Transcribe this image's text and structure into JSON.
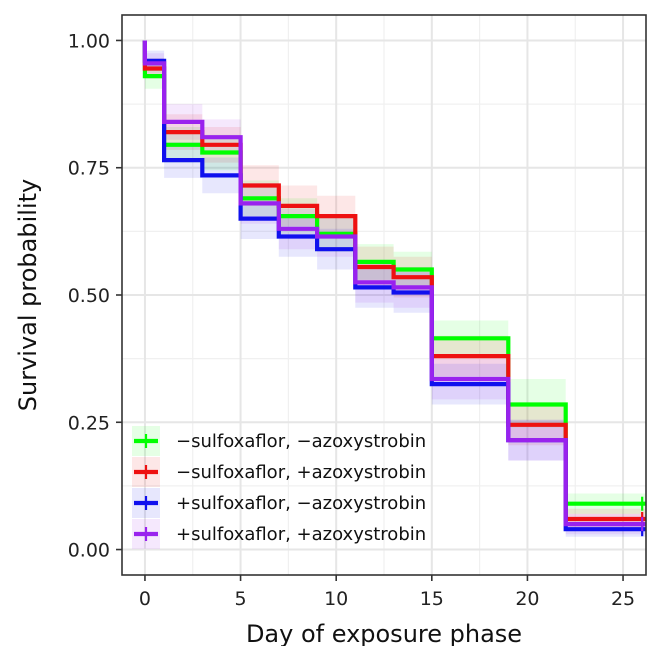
{
  "chart_data": {
    "type": "line",
    "title": "",
    "xlabel": "Day of exposure phase",
    "ylabel": "Survival probability",
    "xlim": [
      -1.2,
      26.2
    ],
    "ylim": [
      -0.05,
      1.05
    ],
    "xticks": [
      0,
      5,
      10,
      15,
      20,
      25
    ],
    "xtick_labels": [
      "0",
      "5",
      "10",
      "15",
      "20",
      "25"
    ],
    "yticks": [
      0,
      0.25,
      0.5,
      0.75,
      1.0
    ],
    "ytick_labels": [
      "0.00",
      "0.25",
      "0.50",
      "0.75",
      "1.00"
    ],
    "grid": true,
    "legend_position": "bottom-left",
    "step": true,
    "series": [
      {
        "name": "−sulfoxaflor, −azoxystrobin",
        "color": "#00ff00",
        "points": [
          [
            0,
            1.0
          ],
          [
            0,
            0.93
          ],
          [
            1,
            0.93
          ],
          [
            1,
            0.795
          ],
          [
            3,
            0.795
          ],
          [
            3,
            0.78
          ],
          [
            5,
            0.78
          ],
          [
            5,
            0.69
          ],
          [
            7,
            0.69
          ],
          [
            7,
            0.655
          ],
          [
            9,
            0.655
          ],
          [
            9,
            0.62
          ],
          [
            11,
            0.62
          ],
          [
            11,
            0.565
          ],
          [
            13,
            0.565
          ],
          [
            13,
            0.55
          ],
          [
            15,
            0.55
          ],
          [
            15,
            0.415
          ],
          [
            19,
            0.415
          ],
          [
            19,
            0.285
          ],
          [
            22,
            0.285
          ],
          [
            22,
            0.09
          ],
          [
            26.2,
            0.09
          ]
        ],
        "ci_upper": [
          [
            0,
            1.0
          ],
          [
            0,
            0.955
          ],
          [
            1,
            0.955
          ],
          [
            1,
            0.83
          ],
          [
            3,
            0.83
          ],
          [
            3,
            0.815
          ],
          [
            5,
            0.815
          ],
          [
            5,
            0.725
          ],
          [
            7,
            0.725
          ],
          [
            7,
            0.69
          ],
          [
            9,
            0.69
          ],
          [
            9,
            0.655
          ],
          [
            11,
            0.655
          ],
          [
            11,
            0.6
          ],
          [
            13,
            0.6
          ],
          [
            13,
            0.585
          ],
          [
            15,
            0.585
          ],
          [
            15,
            0.45
          ],
          [
            19,
            0.45
          ],
          [
            19,
            0.335
          ],
          [
            22,
            0.335
          ],
          [
            22,
            0.11
          ],
          [
            26.2,
            0.11
          ]
        ],
        "ci_lower": [
          [
            0,
            1.0
          ],
          [
            0,
            0.905
          ],
          [
            1,
            0.905
          ],
          [
            1,
            0.76
          ],
          [
            3,
            0.76
          ],
          [
            3,
            0.745
          ],
          [
            5,
            0.745
          ],
          [
            5,
            0.655
          ],
          [
            7,
            0.655
          ],
          [
            7,
            0.62
          ],
          [
            9,
            0.62
          ],
          [
            9,
            0.585
          ],
          [
            11,
            0.585
          ],
          [
            11,
            0.53
          ],
          [
            13,
            0.53
          ],
          [
            13,
            0.515
          ],
          [
            15,
            0.515
          ],
          [
            15,
            0.38
          ],
          [
            19,
            0.38
          ],
          [
            19,
            0.24
          ],
          [
            22,
            0.24
          ],
          [
            22,
            0.07
          ],
          [
            26.2,
            0.07
          ]
        ],
        "censor_x": 26
      },
      {
        "name": "−sulfoxaflor, +azoxystrobin",
        "color": "#ee1111",
        "points": [
          [
            0,
            1.0
          ],
          [
            0,
            0.945
          ],
          [
            1,
            0.945
          ],
          [
            1,
            0.82
          ],
          [
            3,
            0.82
          ],
          [
            3,
            0.795
          ],
          [
            5,
            0.795
          ],
          [
            5,
            0.715
          ],
          [
            7,
            0.715
          ],
          [
            7,
            0.675
          ],
          [
            9,
            0.675
          ],
          [
            9,
            0.655
          ],
          [
            11,
            0.655
          ],
          [
            11,
            0.555
          ],
          [
            13,
            0.555
          ],
          [
            13,
            0.535
          ],
          [
            15,
            0.535
          ],
          [
            15,
            0.38
          ],
          [
            19,
            0.38
          ],
          [
            19,
            0.245
          ],
          [
            22,
            0.245
          ],
          [
            22,
            0.06
          ],
          [
            26.2,
            0.06
          ]
        ],
        "ci_upper": [
          [
            0,
            1.0
          ],
          [
            0,
            0.965
          ],
          [
            1,
            0.965
          ],
          [
            1,
            0.855
          ],
          [
            3,
            0.855
          ],
          [
            3,
            0.83
          ],
          [
            5,
            0.83
          ],
          [
            5,
            0.755
          ],
          [
            7,
            0.755
          ],
          [
            7,
            0.715
          ],
          [
            9,
            0.715
          ],
          [
            9,
            0.695
          ],
          [
            11,
            0.695
          ],
          [
            11,
            0.595
          ],
          [
            13,
            0.595
          ],
          [
            13,
            0.575
          ],
          [
            15,
            0.575
          ],
          [
            15,
            0.42
          ],
          [
            19,
            0.42
          ],
          [
            19,
            0.285
          ],
          [
            22,
            0.285
          ],
          [
            22,
            0.08
          ],
          [
            26.2,
            0.08
          ]
        ],
        "ci_lower": [
          [
            0,
            1.0
          ],
          [
            0,
            0.925
          ],
          [
            1,
            0.925
          ],
          [
            1,
            0.785
          ],
          [
            3,
            0.785
          ],
          [
            3,
            0.76
          ],
          [
            5,
            0.76
          ],
          [
            5,
            0.675
          ],
          [
            7,
            0.675
          ],
          [
            7,
            0.635
          ],
          [
            9,
            0.635
          ],
          [
            9,
            0.615
          ],
          [
            11,
            0.615
          ],
          [
            11,
            0.515
          ],
          [
            13,
            0.515
          ],
          [
            13,
            0.495
          ],
          [
            15,
            0.495
          ],
          [
            15,
            0.34
          ],
          [
            19,
            0.34
          ],
          [
            19,
            0.205
          ],
          [
            22,
            0.205
          ],
          [
            22,
            0.04
          ],
          [
            26.2,
            0.04
          ]
        ],
        "censor_x": 26
      },
      {
        "name": "+sulfoxaflor, −azoxystrobin",
        "color": "#1010ee",
        "points": [
          [
            0,
            1.0
          ],
          [
            0,
            0.96
          ],
          [
            1,
            0.96
          ],
          [
            1,
            0.765
          ],
          [
            3,
            0.765
          ],
          [
            3,
            0.735
          ],
          [
            5,
            0.735
          ],
          [
            5,
            0.65
          ],
          [
            7,
            0.65
          ],
          [
            7,
            0.615
          ],
          [
            9,
            0.615
          ],
          [
            9,
            0.59
          ],
          [
            11,
            0.59
          ],
          [
            11,
            0.515
          ],
          [
            13,
            0.515
          ],
          [
            13,
            0.505
          ],
          [
            15,
            0.505
          ],
          [
            15,
            0.325
          ],
          [
            19,
            0.325
          ],
          [
            19,
            0.215
          ],
          [
            22,
            0.215
          ],
          [
            22,
            0.04
          ],
          [
            26.2,
            0.04
          ]
        ],
        "ci_upper": [
          [
            0,
            1.0
          ],
          [
            0,
            0.98
          ],
          [
            1,
            0.98
          ],
          [
            1,
            0.8
          ],
          [
            3,
            0.8
          ],
          [
            3,
            0.77
          ],
          [
            5,
            0.77
          ],
          [
            5,
            0.69
          ],
          [
            7,
            0.69
          ],
          [
            7,
            0.655
          ],
          [
            9,
            0.655
          ],
          [
            9,
            0.63
          ],
          [
            11,
            0.63
          ],
          [
            11,
            0.555
          ],
          [
            13,
            0.555
          ],
          [
            13,
            0.545
          ],
          [
            15,
            0.545
          ],
          [
            15,
            0.365
          ],
          [
            19,
            0.365
          ],
          [
            19,
            0.255
          ],
          [
            22,
            0.255
          ],
          [
            22,
            0.055
          ],
          [
            26.2,
            0.055
          ]
        ],
        "ci_lower": [
          [
            0,
            1.0
          ],
          [
            0,
            0.94
          ],
          [
            1,
            0.94
          ],
          [
            1,
            0.73
          ],
          [
            3,
            0.73
          ],
          [
            3,
            0.7
          ],
          [
            5,
            0.7
          ],
          [
            5,
            0.61
          ],
          [
            7,
            0.61
          ],
          [
            7,
            0.575
          ],
          [
            9,
            0.575
          ],
          [
            9,
            0.55
          ],
          [
            11,
            0.55
          ],
          [
            11,
            0.475
          ],
          [
            13,
            0.475
          ],
          [
            13,
            0.465
          ],
          [
            15,
            0.465
          ],
          [
            15,
            0.285
          ],
          [
            19,
            0.285
          ],
          [
            19,
            0.175
          ],
          [
            22,
            0.175
          ],
          [
            22,
            0.025
          ],
          [
            26.2,
            0.025
          ]
        ],
        "censor_x": 26
      },
      {
        "name": "+sulfoxaflor, +azoxystrobin",
        "color": "#9922ee",
        "points": [
          [
            0,
            1.0
          ],
          [
            0,
            0.955
          ],
          [
            1,
            0.955
          ],
          [
            1,
            0.84
          ],
          [
            3,
            0.84
          ],
          [
            3,
            0.81
          ],
          [
            5,
            0.81
          ],
          [
            5,
            0.68
          ],
          [
            7,
            0.68
          ],
          [
            7,
            0.63
          ],
          [
            9,
            0.63
          ],
          [
            9,
            0.615
          ],
          [
            11,
            0.615
          ],
          [
            11,
            0.525
          ],
          [
            13,
            0.525
          ],
          [
            13,
            0.515
          ],
          [
            15,
            0.515
          ],
          [
            15,
            0.335
          ],
          [
            19,
            0.335
          ],
          [
            19,
            0.215
          ],
          [
            22,
            0.215
          ],
          [
            22,
            0.05
          ],
          [
            26.2,
            0.05
          ]
        ],
        "ci_upper": [
          [
            0,
            1.0
          ],
          [
            0,
            0.975
          ],
          [
            1,
            0.975
          ],
          [
            1,
            0.875
          ],
          [
            3,
            0.875
          ],
          [
            3,
            0.845
          ],
          [
            5,
            0.845
          ],
          [
            5,
            0.72
          ],
          [
            7,
            0.72
          ],
          [
            7,
            0.67
          ],
          [
            9,
            0.67
          ],
          [
            9,
            0.655
          ],
          [
            11,
            0.655
          ],
          [
            11,
            0.565
          ],
          [
            13,
            0.565
          ],
          [
            13,
            0.555
          ],
          [
            15,
            0.555
          ],
          [
            15,
            0.375
          ],
          [
            19,
            0.375
          ],
          [
            19,
            0.255
          ],
          [
            22,
            0.255
          ],
          [
            22,
            0.07
          ],
          [
            26.2,
            0.07
          ]
        ],
        "ci_lower": [
          [
            0,
            1.0
          ],
          [
            0,
            0.935
          ],
          [
            1,
            0.935
          ],
          [
            1,
            0.805
          ],
          [
            3,
            0.805
          ],
          [
            3,
            0.775
          ],
          [
            5,
            0.775
          ],
          [
            5,
            0.64
          ],
          [
            7,
            0.64
          ],
          [
            7,
            0.59
          ],
          [
            9,
            0.59
          ],
          [
            9,
            0.575
          ],
          [
            11,
            0.575
          ],
          [
            11,
            0.485
          ],
          [
            13,
            0.485
          ],
          [
            13,
            0.475
          ],
          [
            15,
            0.475
          ],
          [
            15,
            0.295
          ],
          [
            19,
            0.295
          ],
          [
            19,
            0.175
          ],
          [
            22,
            0.175
          ],
          [
            22,
            0.03
          ],
          [
            26.2,
            0.03
          ]
        ],
        "censor_x": 26
      }
    ]
  }
}
